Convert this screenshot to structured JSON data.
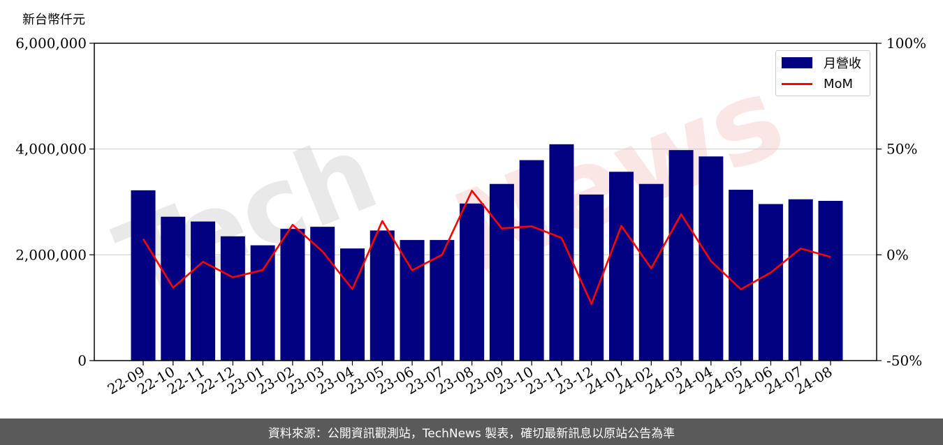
{
  "unit_label": "新台幣仟元",
  "footer": "資料來源：公開資訊觀測站，TechNews 製表，確切最新訊息以原站公告為準",
  "watermark": {
    "tech": "Tech",
    "news": "News"
  },
  "colors": {
    "bar": "#000080",
    "line": "#ff0000",
    "grid": "#d0d0d0",
    "footer_bg": "#5a5a5a"
  },
  "chart_data": {
    "type": "bar",
    "categories": [
      "22-09",
      "22-10",
      "22-11",
      "22-12",
      "23-01",
      "23-02",
      "23-03",
      "23-04",
      "23-05",
      "23-06",
      "23-07",
      "23-08",
      "23-09",
      "23-10",
      "23-11",
      "23-12",
      "24-01",
      "24-02",
      "24-03",
      "24-04",
      "24-05",
      "24-06",
      "24-07",
      "24-08"
    ],
    "series": [
      {
        "name": "月營收",
        "type": "bar",
        "axis": "left",
        "values": [
          3220000,
          2720000,
          2630000,
          2350000,
          2180000,
          2490000,
          2530000,
          2120000,
          2460000,
          2280000,
          2280000,
          2970000,
          3340000,
          3790000,
          4090000,
          3140000,
          3570000,
          3340000,
          3980000,
          3860000,
          3230000,
          2960000,
          3050000,
          3020000
        ]
      },
      {
        "name": "MoM",
        "type": "line",
        "axis": "right",
        "values": [
          7.5,
          -15.5,
          -3.3,
          -10.6,
          -7.2,
          14.2,
          1.6,
          -16.2,
          16.0,
          -7.3,
          0.0,
          30.3,
          12.5,
          13.5,
          8.0,
          -23.2,
          13.7,
          -6.4,
          19.2,
          -3.0,
          -16.3,
          -8.4,
          3.0,
          -1.0
        ]
      }
    ],
    "y_left": {
      "lim": [
        0,
        6000000
      ],
      "ticks": [
        0,
        2000000,
        4000000,
        6000000
      ],
      "tick_labels": [
        "0",
        "2,000,000",
        "4,000,000",
        "6,000,000"
      ]
    },
    "y_right": {
      "lim": [
        -50,
        100
      ],
      "ticks": [
        -50,
        0,
        50,
        100
      ],
      "tick_labels": [
        "-50%",
        "0%",
        "50%",
        "100%"
      ]
    },
    "grid": true,
    "legend_position": "top-right"
  }
}
